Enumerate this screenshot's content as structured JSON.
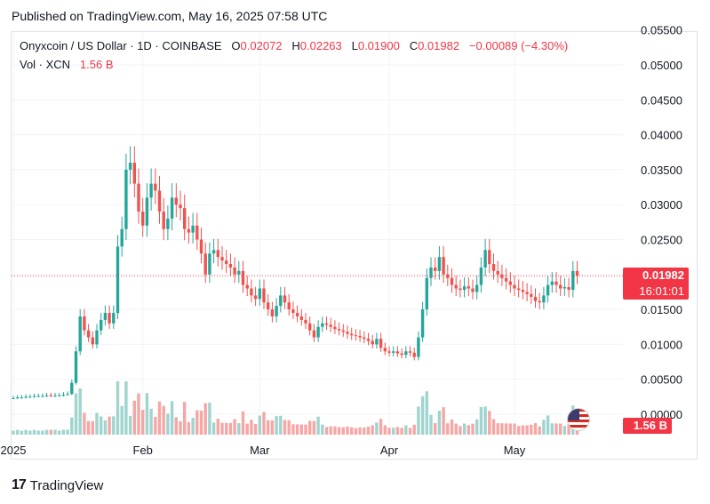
{
  "header": {
    "published": "Published on TradingView.com, May 16, 2025 07:58 UTC"
  },
  "legend": {
    "symbol": "Onyxcoin / US Dollar · 1D · COINBASE",
    "open_label": "O",
    "open": "0.02072",
    "high_label": "H",
    "high": "0.02263",
    "low_label": "L",
    "low": "0.01900",
    "close_label": "C",
    "close": "0.01982",
    "change": "−0.00089 (−4.30%)",
    "vol_label": "Vol · XCN",
    "vol_value": "1.56 B"
  },
  "price_tag": {
    "price": "0.01982",
    "countdown": "16:01:01"
  },
  "volume_tag": {
    "value": "1.56 B"
  },
  "footer": {
    "brand": "TradingView",
    "logo_text": "17"
  },
  "colors": {
    "up": "#26a69a",
    "down": "#ef5350",
    "up_vol": "#9fd4cf",
    "down_vol": "#f5a7a5",
    "grid": "#f0f3fa",
    "text": "#131722"
  },
  "chart_data": {
    "type": "candlestick",
    "yaxis": {
      "min": 0.0,
      "max": 0.055,
      "ticks": [
        "0.05500",
        "0.05000",
        "0.04500",
        "0.04000",
        "0.03500",
        "0.03000",
        "0.02500",
        "0.02000",
        "0.01500",
        "0.01000",
        "0.00500",
        "0.00000"
      ],
      "step": 0.005
    },
    "xaxis": {
      "labels": [
        "2025",
        "Feb",
        "Mar",
        "Apr",
        "May"
      ],
      "label_dates": [
        "2025-01-01",
        "2025-02-01",
        "2025-03-01",
        "2025-04-01",
        "2025-05-01"
      ]
    },
    "dates": [
      "2025-01-01",
      "2025-01-02",
      "2025-01-03",
      "2025-01-04",
      "2025-01-05",
      "2025-01-06",
      "2025-01-07",
      "2025-01-08",
      "2025-01-09",
      "2025-01-10",
      "2025-01-11",
      "2025-01-12",
      "2025-01-13",
      "2025-01-14",
      "2025-01-15",
      "2025-01-16",
      "2025-01-17",
      "2025-01-18",
      "2025-01-19",
      "2025-01-20",
      "2025-01-21",
      "2025-01-22",
      "2025-01-23",
      "2025-01-24",
      "2025-01-25",
      "2025-01-26",
      "2025-01-27",
      "2025-01-28",
      "2025-01-29",
      "2025-01-30",
      "2025-01-31",
      "2025-02-01",
      "2025-02-02",
      "2025-02-03",
      "2025-02-04",
      "2025-02-05",
      "2025-02-06",
      "2025-02-07",
      "2025-02-08",
      "2025-02-09",
      "2025-02-10",
      "2025-02-11",
      "2025-02-12",
      "2025-02-13",
      "2025-02-14",
      "2025-02-15",
      "2025-02-16",
      "2025-02-17",
      "2025-02-18",
      "2025-02-19",
      "2025-02-20",
      "2025-02-21",
      "2025-02-22",
      "2025-02-23",
      "2025-02-24",
      "2025-02-25",
      "2025-02-26",
      "2025-02-27",
      "2025-02-28",
      "2025-03-01",
      "2025-03-02",
      "2025-03-03",
      "2025-03-04",
      "2025-03-05",
      "2025-03-06",
      "2025-03-07",
      "2025-03-08",
      "2025-03-09",
      "2025-03-10",
      "2025-03-11",
      "2025-03-12",
      "2025-03-13",
      "2025-03-14",
      "2025-03-15",
      "2025-03-16",
      "2025-03-17",
      "2025-03-18",
      "2025-03-19",
      "2025-03-20",
      "2025-03-21",
      "2025-03-22",
      "2025-03-23",
      "2025-03-24",
      "2025-03-25",
      "2025-03-26",
      "2025-03-27",
      "2025-03-28",
      "2025-03-29",
      "2025-03-30",
      "2025-03-31",
      "2025-04-01",
      "2025-04-02",
      "2025-04-03",
      "2025-04-04",
      "2025-04-05",
      "2025-04-06",
      "2025-04-07",
      "2025-04-08",
      "2025-04-09",
      "2025-04-10",
      "2025-04-11",
      "2025-04-12",
      "2025-04-13",
      "2025-04-14",
      "2025-04-15",
      "2025-04-16",
      "2025-04-17",
      "2025-04-18",
      "2025-04-19",
      "2025-04-20",
      "2025-04-21",
      "2025-04-22",
      "2025-04-23",
      "2025-04-24",
      "2025-04-25",
      "2025-04-26",
      "2025-04-27",
      "2025-04-28",
      "2025-04-29",
      "2025-04-30",
      "2025-05-01",
      "2025-05-02",
      "2025-05-03",
      "2025-05-04",
      "2025-05-05",
      "2025-05-06",
      "2025-05-07",
      "2025-05-08",
      "2025-05-09",
      "2025-05-10",
      "2025-05-11",
      "2025-05-12",
      "2025-05-13",
      "2025-05-14",
      "2025-05-15",
      "2025-05-16"
    ],
    "close": [
      0.0023,
      0.0024,
      0.0024,
      0.0025,
      0.0025,
      0.0026,
      0.0026,
      0.0026,
      0.0027,
      0.0026,
      0.0027,
      0.0027,
      0.0028,
      0.0029,
      0.0045,
      0.009,
      0.014,
      0.012,
      0.011,
      0.01,
      0.012,
      0.0135,
      0.0145,
      0.013,
      0.0145,
      0.024,
      0.0265,
      0.035,
      0.036,
      0.033,
      0.029,
      0.027,
      0.031,
      0.033,
      0.032,
      0.029,
      0.0265,
      0.028,
      0.031,
      0.03,
      0.0295,
      0.0265,
      0.026,
      0.027,
      0.025,
      0.023,
      0.02,
      0.023,
      0.0235,
      0.0225,
      0.022,
      0.0215,
      0.021,
      0.02,
      0.0205,
      0.0185,
      0.018,
      0.017,
      0.0165,
      0.018,
      0.016,
      0.015,
      0.014,
      0.0155,
      0.017,
      0.016,
      0.015,
      0.0145,
      0.014,
      0.0135,
      0.013,
      0.012,
      0.011,
      0.0125,
      0.013,
      0.0128,
      0.0125,
      0.0122,
      0.012,
      0.0118,
      0.0115,
      0.0113,
      0.0112,
      0.011,
      0.0108,
      0.0105,
      0.01,
      0.0108,
      0.0095,
      0.009,
      0.0088,
      0.009,
      0.0087,
      0.0085,
      0.009,
      0.0088,
      0.0082,
      0.011,
      0.015,
      0.0195,
      0.021,
      0.0205,
      0.0225,
      0.02,
      0.0195,
      0.0185,
      0.018,
      0.0178,
      0.0183,
      0.018,
      0.0175,
      0.0185,
      0.021,
      0.0235,
      0.0215,
      0.0205,
      0.02,
      0.0195,
      0.019,
      0.0185,
      0.018,
      0.0178,
      0.0175,
      0.0172,
      0.0168,
      0.0162,
      0.016,
      0.017,
      0.0185,
      0.019,
      0.0185,
      0.018,
      0.0182,
      0.0178,
      0.0205,
      0.0198
    ],
    "volume_note": "volume histogram shown beneath price, last bar 1.56 B"
  }
}
